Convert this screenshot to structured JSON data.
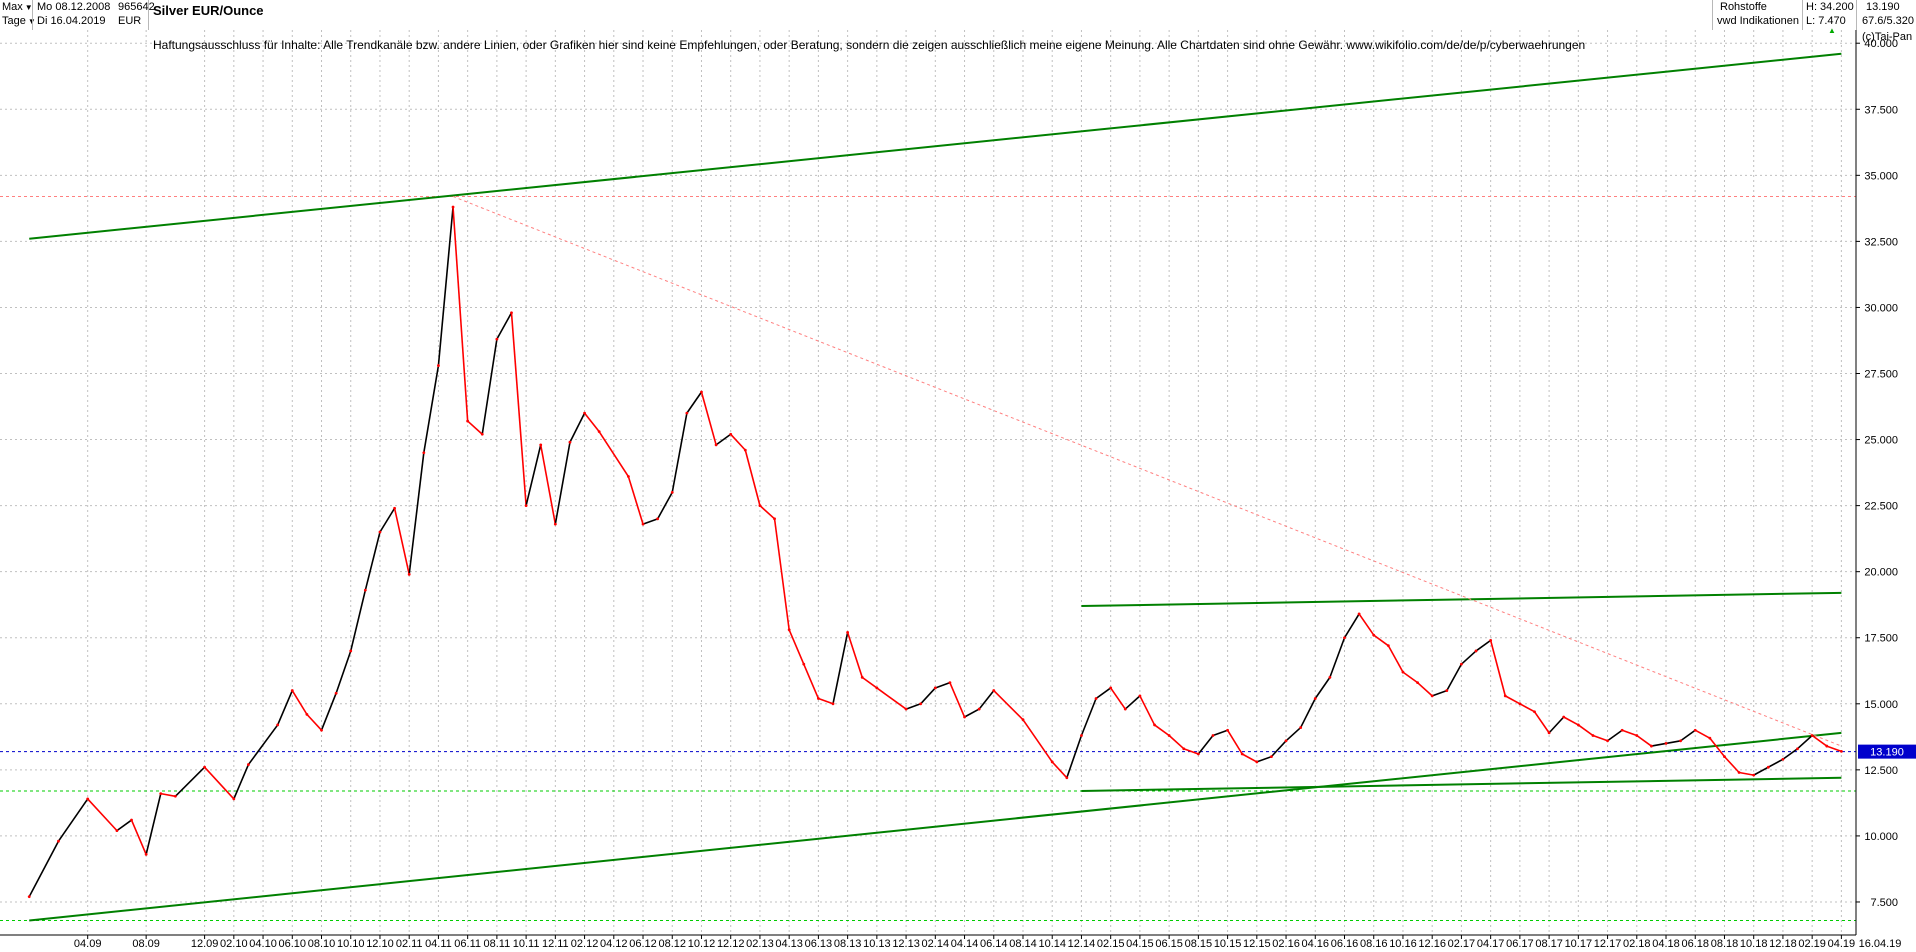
{
  "toolbar": {
    "range": "Max",
    "interval": "Tage",
    "date_from": "Mo 08.12.2008",
    "date_to": "Di 16.04.2019",
    "wkn": "965642",
    "currency": "EUR",
    "title": "Silver EUR/Ounce",
    "category": "Rohstoffe",
    "source": "vwd Indikationen",
    "high_label": "H: 34.200",
    "low_label": "L: 7.470",
    "last": "13.190",
    "stats": "67.6/5.320",
    "brand": "(c)Tai-Pan"
  },
  "disclaimer": "Haftungsausschluss für Inhalte: Alle Trendkanäle bzw. andere Linien, oder Grafiken hier sind keine Empfehlungen, oder Beratung, sondern die zeigen ausschließlich meine eigene Meinung. Alle Chartdaten sind ohne Gewähr.  www.wikifolio.com/de/de/p/cyberwaehrungen",
  "colors": {
    "up": "#000000",
    "down": "#ff0000",
    "trend": "#008000",
    "support_dash": "#00cc00",
    "resistance_dash": "#ff8080",
    "price_line": "#0000cc",
    "price_tag": "#0000cc",
    "grid": "#c0c0c0"
  },
  "chart_data": {
    "type": "line",
    "title": "Silver EUR/Ounce",
    "xlabel": "",
    "ylabel": "",
    "ylim": [
      6.25,
      40.5
    ],
    "grid": true,
    "y_ticks": [
      "7.500",
      "10.000",
      "12.500",
      "15.000",
      "17.500",
      "20.000",
      "22.500",
      "25.000",
      "27.500",
      "30.000",
      "32.500",
      "35.000",
      "37.500",
      "40.000"
    ],
    "x_ticks": [
      "04.09",
      "08.09",
      "12.09",
      "02.10",
      "04.10",
      "06.10",
      "08.10",
      "10.10",
      "12.10",
      "02.11",
      "04.11",
      "06.11",
      "08.11",
      "10.11",
      "12.11",
      "02.12",
      "04.12",
      "06.12",
      "08.12",
      "10.12",
      "12.12",
      "02.13",
      "04.13",
      "06.13",
      "08.13",
      "10.13",
      "12.13",
      "02.14",
      "04.14",
      "06.14",
      "08.14",
      "10.14",
      "12.14",
      "02.15",
      "04.15",
      "06.15",
      "08.15",
      "10.15",
      "12.15",
      "02.16",
      "04.16",
      "06.16",
      "08.16",
      "10.16",
      "12.16",
      "02.17",
      "04.17",
      "06.17",
      "08.17",
      "10.17",
      "12.17",
      "02.18",
      "04.18",
      "06.18",
      "08.18",
      "10.18",
      "12.18",
      "02.19",
      "04.19",
      "16.04.19"
    ],
    "series": [
      {
        "x": [
          "12.2008",
          "02.2009",
          "04.2009",
          "06.2009",
          "07.2009",
          "08.2009",
          "09.2009",
          "10.2009",
          "12.2009",
          "02.2010",
          "03.2010",
          "05.2010",
          "06.2010",
          "07.2010",
          "08.2010",
          "09.2010",
          "10.2010",
          "11.2010",
          "12.2010",
          "01.2011",
          "02.2011",
          "03.2011",
          "04.2011",
          "05.2011",
          "06.2011",
          "07.2011",
          "08.2011",
          "09.2011",
          "10.2011",
          "11.2011",
          "12.2011",
          "01.2012",
          "02.2012",
          "03.2012",
          "05.2012",
          "06.2012",
          "07.2012",
          "08.2012",
          "09.2012",
          "10.2012",
          "11.2012",
          "12.2012",
          "01.2013",
          "02.2013",
          "03.2013",
          "04.2013",
          "05.2013",
          "06.2013",
          "07.2013",
          "08.2013",
          "09.2013",
          "10.2013",
          "12.2013",
          "01.2014",
          "02.2014",
          "03.2014",
          "04.2014",
          "05.2014",
          "06.2014",
          "08.2014",
          "10.2014",
          "11.2014",
          "12.2014",
          "01.2015",
          "02.2015",
          "03.2015",
          "04.2015",
          "05.2015",
          "06.2015",
          "07.2015",
          "08.2015",
          "09.2015",
          "10.2015",
          "11.2015",
          "12.2015",
          "01.2016",
          "02.2016",
          "03.2016",
          "04.2016",
          "05.2016",
          "06.2016",
          "07.2016",
          "08.2016",
          "09.2016",
          "10.2016",
          "11.2016",
          "12.2016",
          "01.2017",
          "02.2017",
          "03.2017",
          "04.2017",
          "05.2017",
          "06.2017",
          "07.2017",
          "08.2017",
          "09.2017",
          "10.2017",
          "11.2017",
          "12.2017",
          "01.2018",
          "02.2018",
          "03.2018",
          "04.2018",
          "05.2018",
          "06.2018",
          "07.2018",
          "08.2018",
          "09.2018",
          "10.2018",
          "11.2018",
          "12.2018",
          "01.2019",
          "02.2019",
          "03.2019",
          "04.2019"
        ],
        "values": [
          7.7,
          9.8,
          11.4,
          10.2,
          10.6,
          9.3,
          11.6,
          11.5,
          12.6,
          11.4,
          12.7,
          14.2,
          15.5,
          14.6,
          14.0,
          15.4,
          17.0,
          19.3,
          21.5,
          22.4,
          19.9,
          24.5,
          27.8,
          33.8,
          25.7,
          25.2,
          28.8,
          29.8,
          22.5,
          24.8,
          21.8,
          24.9,
          26.0,
          25.3,
          23.6,
          21.8,
          22.0,
          23.0,
          26.0,
          26.8,
          24.8,
          25.2,
          24.6,
          22.5,
          22.0,
          17.8,
          16.5,
          15.2,
          15.0,
          17.7,
          16.0,
          15.6,
          14.8,
          15.0,
          15.6,
          15.8,
          14.5,
          14.8,
          15.5,
          14.4,
          12.8,
          12.2,
          13.8,
          15.2,
          15.6,
          14.8,
          15.3,
          14.2,
          13.8,
          13.3,
          13.1,
          13.8,
          14.0,
          13.1,
          12.8,
          13.0,
          13.6,
          14.1,
          15.2,
          16.0,
          17.5,
          18.4,
          17.6,
          17.2,
          16.2,
          15.8,
          15.3,
          15.5,
          16.5,
          17.0,
          17.4,
          15.3,
          15.0,
          14.7,
          13.9,
          14.5,
          14.2,
          13.8,
          13.6,
          14.0,
          13.8,
          13.4,
          13.5,
          13.6,
          14.0,
          13.7,
          13.0,
          12.4,
          12.3,
          12.6,
          12.9,
          13.3,
          13.8,
          13.4,
          13.2
        ]
      }
    ],
    "annotations": [
      {
        "type": "trendline",
        "from": [
          "12.2008",
          6.8
        ],
        "to": [
          "04.2019",
          13.9
        ]
      },
      {
        "type": "trendline",
        "from": [
          "12.2008",
          32.6
        ],
        "to": [
          "04.2019",
          39.6
        ]
      },
      {
        "type": "trendline",
        "from": [
          "12.2014",
          18.7
        ],
        "to": [
          "04.2019",
          19.2
        ]
      },
      {
        "type": "trendline",
        "from": [
          "12.2014",
          11.7
        ],
        "to": [
          "04.2019",
          12.2
        ]
      },
      {
        "type": "hline",
        "y": 34.2,
        "style": "dashed"
      },
      {
        "type": "hline",
        "y": 13.19,
        "style": "dashed"
      },
      {
        "type": "hline",
        "y": 11.7,
        "style": "dashed"
      },
      {
        "type": "hline",
        "y": 6.8,
        "style": "dashed"
      },
      {
        "type": "resistance",
        "from": [
          "05.2011",
          34.2
        ],
        "to": [
          "04.2019",
          13.4
        ]
      }
    ],
    "last_value": "13.190"
  }
}
